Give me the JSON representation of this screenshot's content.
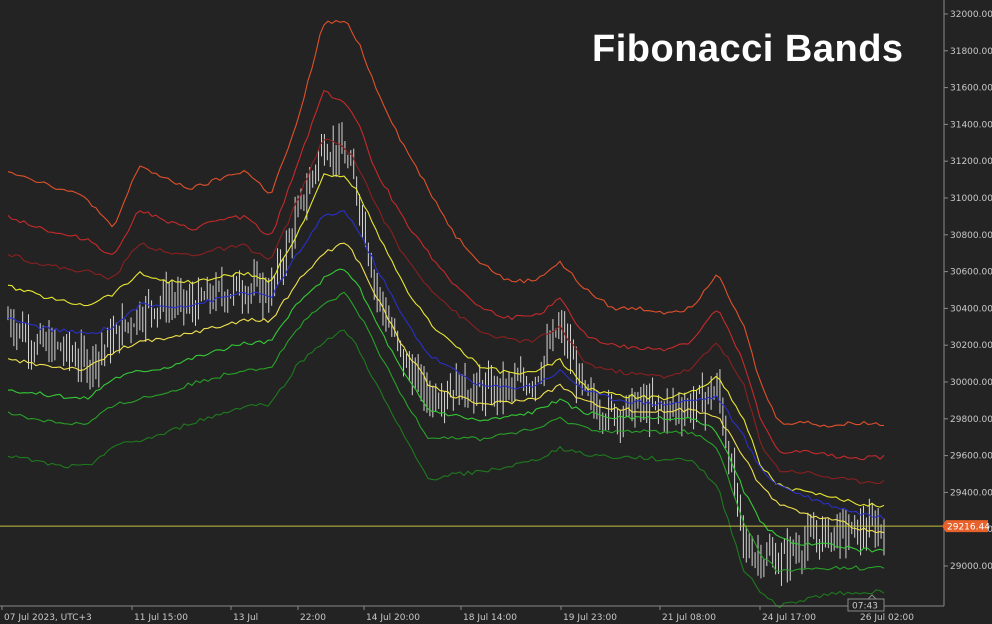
{
  "title": "Fibonacci Bands",
  "price_label": "29216.44",
  "timer": "07:43",
  "colors": {
    "background": "#232323",
    "axis": "#8a8a8a",
    "price_line": "#c8c040",
    "price_badge": "#e8602a",
    "candles": "#e8e8e8"
  },
  "chart_data": {
    "type": "line",
    "title": "Fibonacci Bands",
    "ylim": [
      28790,
      32050
    ],
    "y_ticks": [
      29000,
      29200,
      29400,
      29600,
      29800,
      30000,
      30200,
      30400,
      30600,
      30800,
      31000,
      31200,
      31400,
      31600,
      31800,
      32000
    ],
    "y_tick_labels": [
      "29000.00",
      "29200.00",
      "29400.00",
      "29600.00",
      "29800.00",
      "30000.00",
      "30200.00",
      "30400.00",
      "30600.00",
      "30800.00",
      "31000.00",
      "31200.00",
      "31400.00",
      "31600.00",
      "31800.00",
      "32000.00"
    ],
    "x_labels": [
      "07 Jul 2023, UTC+3",
      "11 Jul 15:00",
      "13 Jul",
      "22:00",
      "14 Jul 20:00",
      "18 Jul 14:00",
      "19 Jul 23:00",
      "21 Jul 08:00",
      "24 Jul 17:00",
      "26 Jul 02:00"
    ],
    "x_label_pos": [
      0,
      0.148,
      0.268,
      0.353,
      0.433,
      0.552,
      0.666,
      0.784,
      0.898,
      1.0
    ],
    "x": [
      0,
      0.03,
      0.06,
      0.09,
      0.12,
      0.15,
      0.18,
      0.21,
      0.24,
      0.27,
      0.3,
      0.33,
      0.36,
      0.385,
      0.4,
      0.42,
      0.45,
      0.48,
      0.51,
      0.54,
      0.57,
      0.6,
      0.63,
      0.66,
      0.69,
      0.72,
      0.75,
      0.78,
      0.81,
      0.84,
      0.86,
      0.88,
      0.91,
      0.94,
      0.97,
      1.0
    ],
    "series": [
      {
        "color": "#e0502a",
        "values": [
          31150,
          31100,
          31050,
          31000,
          30830,
          31180,
          31100,
          31050,
          31100,
          31150,
          31020,
          31400,
          31950,
          31960,
          31850,
          31600,
          31300,
          31050,
          30800,
          30650,
          30550,
          30550,
          30650,
          30500,
          30400,
          30400,
          30380,
          30400,
          30600,
          30300,
          29980,
          29780,
          29780,
          29760,
          29780,
          29770
        ]
      },
      {
        "color": "#c62a2a",
        "values": [
          30900,
          30850,
          30800,
          30780,
          30680,
          30940,
          30870,
          30830,
          30880,
          30900,
          30780,
          31180,
          31580,
          31520,
          31400,
          31150,
          30900,
          30700,
          30530,
          30400,
          30350,
          30350,
          30450,
          30250,
          30200,
          30180,
          30180,
          30220,
          30400,
          30100,
          29780,
          29620,
          29620,
          29600,
          29590,
          29590
        ]
      },
      {
        "color": "#8a2020",
        "values": [
          30700,
          30650,
          30620,
          30600,
          30560,
          30760,
          30700,
          30690,
          30720,
          30740,
          30660,
          30980,
          31320,
          31280,
          31170,
          30960,
          30700,
          30520,
          30380,
          30270,
          30230,
          30220,
          30300,
          30100,
          30060,
          30040,
          30030,
          30070,
          30220,
          29980,
          29660,
          29520,
          29510,
          29480,
          29460,
          29460
        ]
      },
      {
        "color": "#e8e830",
        "values": [
          30520,
          30480,
          30440,
          30420,
          30480,
          30590,
          30550,
          30540,
          30570,
          30590,
          30550,
          30800,
          31120,
          31110,
          31030,
          30820,
          30540,
          30330,
          30200,
          30080,
          30050,
          30050,
          30120,
          29970,
          29930,
          29920,
          29910,
          29950,
          30030,
          29800,
          29540,
          29440,
          29400,
          29370,
          29340,
          29330
        ]
      },
      {
        "color": "#2a30c8",
        "values": [
          30350,
          30300,
          30280,
          30260,
          30300,
          30420,
          30410,
          30420,
          30450,
          30490,
          30460,
          30690,
          30900,
          30930,
          30820,
          30630,
          30360,
          30150,
          30060,
          29980,
          29970,
          29980,
          30060,
          29950,
          29910,
          29890,
          29880,
          29900,
          29920,
          29700,
          29520,
          29440,
          29380,
          29330,
          29290,
          29260
        ]
      },
      {
        "color": "#f0e050",
        "values": [
          30120,
          30100,
          30080,
          30070,
          30160,
          30220,
          30230,
          30270,
          30300,
          30340,
          30330,
          30540,
          30700,
          30760,
          30660,
          30470,
          30200,
          29990,
          29920,
          29880,
          29890,
          29910,
          29980,
          29890,
          29860,
          29840,
          29840,
          29850,
          29820,
          29590,
          29430,
          29340,
          29280,
          29250,
          29210,
          29170
        ]
      },
      {
        "color": "#36c836",
        "values": [
          29960,
          29940,
          29920,
          29910,
          30020,
          30060,
          30080,
          30130,
          30170,
          30210,
          30220,
          30420,
          30560,
          30620,
          30520,
          30330,
          30060,
          29850,
          29820,
          29790,
          29810,
          29840,
          29900,
          29830,
          29810,
          29800,
          29800,
          29800,
          29730,
          29410,
          29230,
          29150,
          29120,
          29110,
          29090,
          29080
        ]
      },
      {
        "color": "#28a028",
        "values": [
          29830,
          29800,
          29780,
          29770,
          29870,
          29910,
          29940,
          29990,
          30030,
          30070,
          30080,
          30290,
          30420,
          30480,
          30380,
          30190,
          29920,
          29700,
          29700,
          29690,
          29720,
          29740,
          29800,
          29750,
          29730,
          29730,
          29730,
          29730,
          29640,
          29230,
          29060,
          28970,
          28980,
          28990,
          28990,
          28990
        ]
      },
      {
        "color": "#1e7a1e",
        "values": [
          29600,
          29570,
          29540,
          29540,
          29650,
          29680,
          29720,
          29780,
          29820,
          29870,
          29880,
          30090,
          30220,
          30280,
          30180,
          29990,
          29720,
          29470,
          29500,
          29510,
          29540,
          29570,
          29640,
          29610,
          29590,
          29590,
          29580,
          29580,
          29430,
          28980,
          28860,
          28780,
          28820,
          28850,
          28860,
          28860
        ]
      }
    ],
    "candles_close": [
      30350,
      30210,
      30180,
      30100,
      30240,
      30380,
      30450,
      30410,
      30480,
      30520,
      30490,
      30900,
      31300,
      31220,
      31000,
      30500,
      30120,
      29920,
      29980,
      29950,
      29960,
      30020,
      30300,
      29900,
      29830,
      29870,
      29850,
      29870,
      29960,
      29100,
      29060,
      29030,
      29130,
      29180,
      29190,
      29216
    ],
    "last_price": 29216.44
  }
}
